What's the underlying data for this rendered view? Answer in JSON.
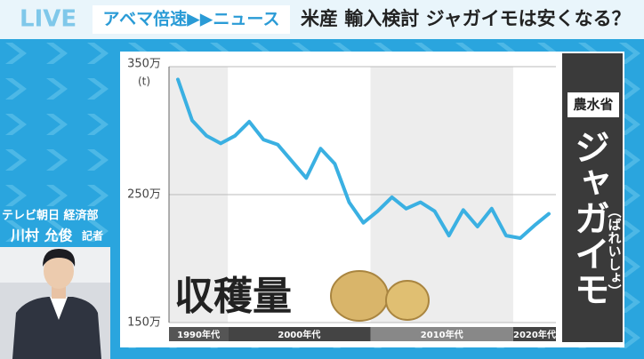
{
  "header": {
    "live": "LIVE",
    "program": "アベマ倍速▶▶ニュース",
    "headline": "米産 輸入検討 ジャガイモは安くなる？"
  },
  "caption": {
    "affiliation": "テレビ朝日 経済部",
    "name": "川村 允俊",
    "role": "記者"
  },
  "side_panel": {
    "source": "農水省",
    "subject": "ジャガイモ",
    "reading": "（ばれいしょ）"
  },
  "chart_data": {
    "type": "line",
    "y_unit": "(t)",
    "label": "収穫量",
    "categories": [
      null,
      null,
      null,
      null,
      null,
      null,
      null,
      null,
      null,
      null,
      null,
      null,
      null,
      null,
      null,
      null,
      null,
      null,
      null,
      null,
      null,
      null,
      null,
      null,
      null,
      null,
      null
    ],
    "x_bands": [
      "1990年代",
      "2000年代",
      "2010年代",
      "2020年代"
    ],
    "values": [
      340,
      308,
      296,
      290,
      296,
      307,
      293,
      289,
      276,
      263,
      286,
      274,
      244,
      228,
      237,
      248,
      239,
      244,
      237,
      218,
      238,
      225,
      239,
      218,
      216,
      226,
      235
    ],
    "color": "#3ab0e2",
    "ylim": [
      150,
      350
    ],
    "yticks": [
      {
        "value": 150,
        "label": "150万"
      },
      {
        "value": 250,
        "label": "250万"
      },
      {
        "value": 350,
        "label": "350万"
      }
    ],
    "grid": true
  }
}
